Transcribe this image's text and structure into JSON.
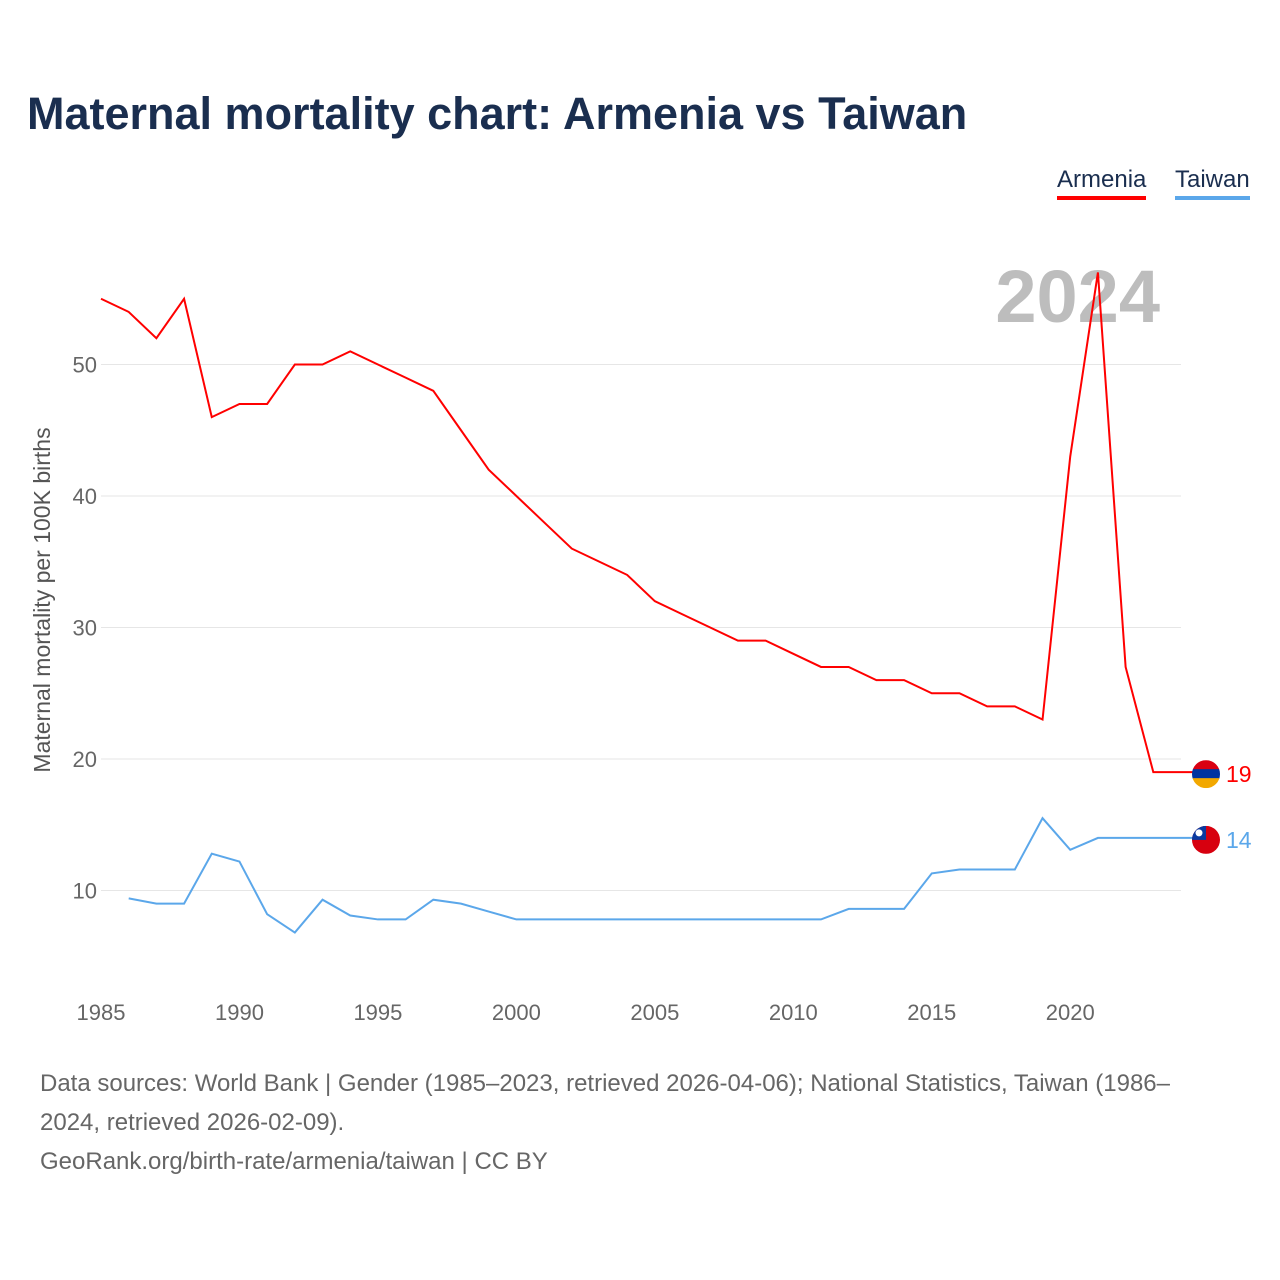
{
  "title": "Maternal mortality chart: Armenia vs Taiwan",
  "legend": [
    "Armenia",
    "Taiwan"
  ],
  "year_label": "2024",
  "footer": {
    "sources": "Data sources: World Bank | Gender (1985–2023, retrieved 2026-04-06); National Statistics, Taiwan (1986–2024, retrieved 2026-02-09).",
    "credit": "GeoRank.org/birth-rate/armenia/taiwan | CC BY"
  },
  "chart_data": {
    "type": "line",
    "title": "Maternal mortality chart: Armenia vs Taiwan",
    "xlabel": "",
    "ylabel": "Maternal mortality per 100K births",
    "xlim": [
      1985,
      2024
    ],
    "ylim": [
      0,
      60
    ],
    "xticks": [
      1985,
      1990,
      1995,
      2000,
      2005,
      2010,
      2015,
      2020
    ],
    "yticks": [
      10,
      20,
      30,
      40,
      50
    ],
    "grid": true,
    "legend_position": "top-right",
    "series": [
      {
        "name": "Armenia",
        "color": "#ff0000",
        "end_label": "19",
        "x": [
          1985,
          1986,
          1987,
          1988,
          1989,
          1990,
          1991,
          1992,
          1993,
          1994,
          1995,
          1996,
          1997,
          1998,
          1999,
          2000,
          2001,
          2002,
          2003,
          2004,
          2005,
          2006,
          2007,
          2008,
          2009,
          2010,
          2011,
          2012,
          2013,
          2014,
          2015,
          2016,
          2017,
          2018,
          2019,
          2020,
          2021,
          2022,
          2023
        ],
        "values": [
          55,
          54,
          52,
          55,
          46,
          47,
          47,
          50,
          50,
          51,
          50,
          49,
          48,
          45,
          42,
          40,
          38,
          36,
          35,
          34,
          32,
          31,
          30,
          29,
          29,
          28,
          27,
          27,
          26,
          26,
          25,
          25,
          24,
          24,
          23,
          43,
          57,
          27,
          19
        ]
      },
      {
        "name": "Taiwan",
        "color": "#5ba7ea",
        "end_label": "14",
        "x": [
          1986,
          1987,
          1988,
          1989,
          1990,
          1991,
          1992,
          1993,
          1994,
          1995,
          1996,
          1997,
          1998,
          1999,
          2000,
          2001,
          2002,
          2003,
          2004,
          2005,
          2006,
          2007,
          2008,
          2009,
          2010,
          2011,
          2012,
          2013,
          2014,
          2015,
          2016,
          2017,
          2018,
          2019,
          2020,
          2021,
          2022,
          2023,
          2024
        ],
        "values": [
          9.4,
          9.0,
          9.0,
          12.8,
          12.2,
          8.2,
          6.8,
          9.3,
          8.1,
          7.8,
          7.8,
          9.3,
          9.0,
          8.4,
          7.8,
          7.8,
          7.8,
          7.8,
          7.8,
          7.8,
          7.8,
          7.8,
          7.8,
          7.8,
          7.8,
          7.8,
          8.6,
          8.6,
          8.6,
          11.3,
          11.6,
          11.6,
          11.6,
          15.5,
          13.1,
          14,
          14,
          14,
          14
        ]
      }
    ]
  }
}
